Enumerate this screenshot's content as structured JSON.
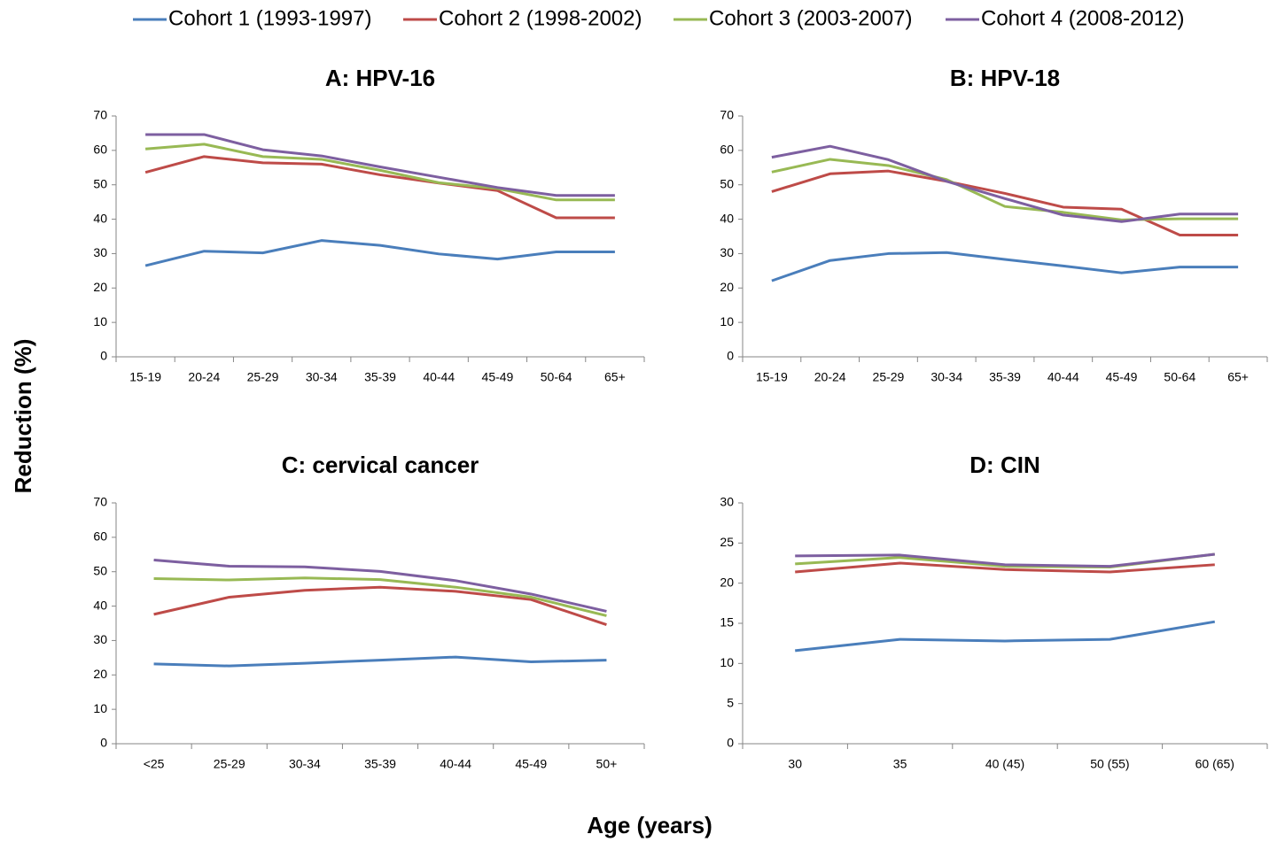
{
  "chart_data": [
    {
      "type": "line",
      "title": "A: HPV-16",
      "categories": [
        "15-19",
        "20-24",
        "25-29",
        "30-34",
        "35-39",
        "40-44",
        "45-49",
        "50-64",
        "65+"
      ],
      "ylim": [
        0,
        70
      ],
      "yticks": [
        0,
        10,
        20,
        30,
        40,
        50,
        60,
        70
      ],
      "grid": false,
      "series": [
        {
          "name": "Cohort 1 (1993-1997)",
          "color": "#4a7ebb",
          "values": [
            26.5,
            30.7,
            30.2,
            33.8,
            32.4,
            29.9,
            28.4,
            30.5,
            30.5
          ]
        },
        {
          "name": "Cohort 2 (1998-2002)",
          "color": "#be4b48",
          "values": [
            53.6,
            58.2,
            56.4,
            56.0,
            52.9,
            50.5,
            48.3,
            40.4,
            40.4
          ]
        },
        {
          "name": "Cohort 3 (2003-2007)",
          "color": "#98b954",
          "values": [
            60.4,
            61.8,
            58.2,
            57.4,
            54.2,
            50.6,
            48.9,
            45.6,
            45.6
          ]
        },
        {
          "name": "Cohort 4 (2008-2012)",
          "color": "#7d5fa0",
          "values": [
            64.6,
            64.6,
            60.2,
            58.4,
            55.2,
            52.2,
            49.2,
            46.9,
            46.9
          ]
        }
      ]
    },
    {
      "type": "line",
      "title": "B: HPV-18",
      "categories": [
        "15-19",
        "20-24",
        "25-29",
        "30-34",
        "35-39",
        "40-44",
        "45-49",
        "50-64",
        "65+"
      ],
      "ylim": [
        0,
        70
      ],
      "yticks": [
        0,
        10,
        20,
        30,
        40,
        50,
        60,
        70
      ],
      "grid": false,
      "series": [
        {
          "name": "Cohort 1 (1993-1997)",
          "color": "#4a7ebb",
          "values": [
            22.1,
            28.0,
            30.0,
            30.3,
            28.3,
            26.4,
            24.4,
            26.1,
            26.1
          ]
        },
        {
          "name": "Cohort 2 (1998-2002)",
          "color": "#be4b48",
          "values": [
            48.0,
            53.2,
            54.0,
            51.0,
            47.5,
            43.5,
            42.9,
            35.4,
            35.4
          ]
        },
        {
          "name": "Cohort 3 (2003-2007)",
          "color": "#98b954",
          "values": [
            53.7,
            57.4,
            55.6,
            51.5,
            43.7,
            42.0,
            39.8,
            40.1,
            40.1
          ]
        },
        {
          "name": "Cohort 4 (2008-2012)",
          "color": "#7d5fa0",
          "values": [
            58.0,
            61.2,
            57.3,
            51.0,
            46.0,
            41.2,
            39.3,
            41.5,
            41.5
          ]
        }
      ]
    },
    {
      "type": "line",
      "title": "C: cervical cancer",
      "categories": [
        "<25",
        "25-29",
        "30-34",
        "35-39",
        "40-44",
        "45-49",
        "50+"
      ],
      "ylim": [
        0,
        70
      ],
      "yticks": [
        0,
        10,
        20,
        30,
        40,
        50,
        60,
        70
      ],
      "grid": false,
      "series": [
        {
          "name": "Cohort 1 (1993-1997)",
          "color": "#4a7ebb",
          "values": [
            23.2,
            22.6,
            23.4,
            24.3,
            25.2,
            23.8,
            24.3
          ]
        },
        {
          "name": "Cohort 2 (1998-2002)",
          "color": "#be4b48",
          "values": [
            37.6,
            42.6,
            44.6,
            45.5,
            44.3,
            41.9,
            34.6
          ]
        },
        {
          "name": "Cohort 3 (2003-2007)",
          "color": "#98b954",
          "values": [
            48.0,
            47.6,
            48.2,
            47.7,
            45.5,
            42.6,
            37.2
          ]
        },
        {
          "name": "Cohort 4 (2008-2012)",
          "color": "#7d5fa0",
          "values": [
            53.4,
            51.6,
            51.4,
            50.1,
            47.4,
            43.5,
            38.5
          ]
        }
      ]
    },
    {
      "type": "line",
      "title": "D: CIN",
      "categories": [
        "30",
        "35",
        "40 (45)",
        "50 (55)",
        "60 (65)"
      ],
      "ylim": [
        0,
        30
      ],
      "yticks": [
        0,
        5,
        10,
        15,
        20,
        25,
        30
      ],
      "grid": false,
      "series": [
        {
          "name": "Cohort 1 (1993-1997)",
          "color": "#4a7ebb",
          "values": [
            11.6,
            13.0,
            12.8,
            13.0,
            15.2
          ]
        },
        {
          "name": "Cohort 2 (1998-2002)",
          "color": "#be4b48",
          "values": [
            21.4,
            22.5,
            21.7,
            21.4,
            22.3
          ]
        },
        {
          "name": "Cohort 3 (2003-2007)",
          "color": "#98b954",
          "values": [
            22.4,
            23.2,
            22.1,
            22.0,
            23.6
          ]
        },
        {
          "name": "Cohort 4 (2008-2012)",
          "color": "#7d5fa0",
          "values": [
            23.4,
            23.5,
            22.3,
            22.1,
            23.6
          ]
        }
      ]
    }
  ],
  "y_label": "Reduction (%)",
  "x_label": "Age (years)"
}
